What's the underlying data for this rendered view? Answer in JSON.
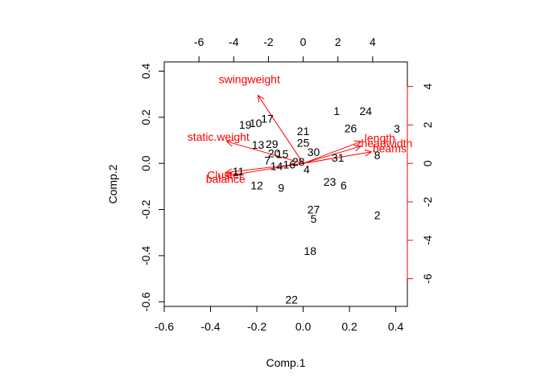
{
  "chart_data": {
    "type": "scatter",
    "subtype": "biplot",
    "title": "",
    "xlabel": "Comp.1",
    "ylabel": "Comp.2",
    "xlim": [
      -0.6,
      0.45
    ],
    "ylim": [
      -0.62,
      0.44
    ],
    "x_ticks": [
      -0.6,
      -0.4,
      -0.2,
      0.0,
      0.2,
      0.4
    ],
    "x_tick_labels": [
      "-0.6",
      "-0.4",
      "-0.2",
      "0.0",
      "0.2",
      "0.4"
    ],
    "y_ticks": [
      -0.6,
      -0.4,
      -0.2,
      0.0,
      0.2,
      0.4
    ],
    "y_tick_labels": [
      "-0.6",
      "-0.4",
      "-0.2",
      "0.0",
      "0.2",
      "0.4"
    ],
    "top_axis_ticks": [
      -6,
      -4,
      -2,
      0,
      2,
      4
    ],
    "top_axis_tick_labels": [
      "-6",
      "-4",
      "-2",
      "0",
      "2",
      "4"
    ],
    "right_axis_ticks": [
      4,
      2,
      0,
      -2,
      -4,
      -6
    ],
    "right_axis_tick_labels": [
      "4",
      "2",
      "0",
      "-2",
      "-4",
      "-6"
    ],
    "grid": false,
    "colors": {
      "points": "#000000",
      "loadings": "#ff0000",
      "axes": "#000000"
    },
    "points": [
      {
        "label": "1",
        "x": 0.145,
        "y": 0.228
      },
      {
        "label": "24",
        "x": 0.27,
        "y": 0.228
      },
      {
        "label": "3",
        "x": 0.405,
        "y": 0.15
      },
      {
        "label": "26",
        "x": 0.205,
        "y": 0.153
      },
      {
        "label": "17",
        "x": -0.155,
        "y": 0.195
      },
      {
        "label": "10",
        "x": -0.205,
        "y": 0.175
      },
      {
        "label": "19",
        "x": -0.25,
        "y": 0.168
      },
      {
        "label": "21",
        "x": 0.0,
        "y": 0.14
      },
      {
        "label": "25",
        "x": 0.0,
        "y": 0.09
      },
      {
        "label": "13",
        "x": -0.195,
        "y": 0.08
      },
      {
        "label": "29",
        "x": -0.135,
        "y": 0.085
      },
      {
        "label": "20",
        "x": -0.125,
        "y": 0.045
      },
      {
        "label": "15",
        "x": -0.09,
        "y": 0.04
      },
      {
        "label": "30",
        "x": 0.045,
        "y": 0.05
      },
      {
        "label": "7",
        "x": -0.155,
        "y": 0.012
      },
      {
        "label": "14",
        "x": -0.115,
        "y": -0.012
      },
      {
        "label": "16",
        "x": -0.06,
        "y": -0.004
      },
      {
        "label": "28",
        "x": -0.02,
        "y": 0.008
      },
      {
        "label": "4",
        "x": 0.015,
        "y": -0.025
      },
      {
        "label": "31",
        "x": 0.15,
        "y": 0.025
      },
      {
        "label": "8",
        "x": 0.32,
        "y": 0.035
      },
      {
        "label": "11",
        "x": -0.28,
        "y": -0.035
      },
      {
        "label": "12",
        "x": -0.2,
        "y": -0.095
      },
      {
        "label": "9",
        "x": -0.095,
        "y": -0.105
      },
      {
        "label": "23",
        "x": 0.115,
        "y": -0.08
      },
      {
        "label": "6",
        "x": 0.175,
        "y": -0.095
      },
      {
        "label": "27",
        "x": 0.045,
        "y": -0.2
      },
      {
        "label": "5",
        "x": 0.045,
        "y": -0.24
      },
      {
        "label": "2",
        "x": 0.32,
        "y": -0.225
      },
      {
        "label": "18",
        "x": 0.03,
        "y": -0.38
      },
      {
        "label": "22",
        "x": -0.05,
        "y": -0.59
      }
    ],
    "loadings": [
      {
        "label": "swingweight",
        "x": -0.195,
        "y": 0.295,
        "label_x": -0.365,
        "label_y": 0.365
      },
      {
        "label": "static.weight",
        "x": -0.33,
        "y": 0.095,
        "label_x": -0.5,
        "label_y": 0.115
      },
      {
        "label": "Cluster",
        "x": -0.335,
        "y": -0.04,
        "label_x": -0.415,
        "label_y": -0.05
      },
      {
        "label": "balance",
        "x": -0.335,
        "y": -0.055,
        "label_x": -0.42,
        "label_y": -0.068
      },
      {
        "label": "length",
        "x": 0.25,
        "y": 0.095,
        "label_x": 0.265,
        "label_y": 0.11
      },
      {
        "label": "headwidth",
        "x": 0.25,
        "y": 0.075,
        "label_x": 0.25,
        "label_y": 0.088
      },
      {
        "label": "beams",
        "x": 0.295,
        "y": 0.05,
        "label_x": 0.3,
        "label_y": 0.065
      }
    ]
  }
}
